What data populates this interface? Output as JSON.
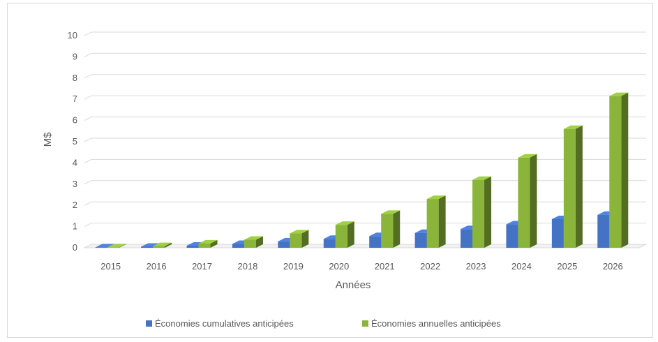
{
  "chart_data": {
    "type": "bar",
    "title": "",
    "xlabel": "Années",
    "ylabel": "M$",
    "ylim": [
      0,
      10
    ],
    "yticks": [
      "0",
      "1",
      "2",
      "3",
      "4",
      "5",
      "6",
      "7",
      "8",
      "9",
      "10"
    ],
    "categories": [
      "2015",
      "2016",
      "2017",
      "2018",
      "2019",
      "2020",
      "2021",
      "2022",
      "2023",
      "2024",
      "2025",
      "2026"
    ],
    "series": [
      {
        "name": "Économies cumulatives anticipées",
        "color": "#4472c4",
        "values": [
          0.02,
          0.05,
          0.1,
          0.18,
          0.3,
          0.42,
          0.55,
          0.7,
          0.88,
          1.1,
          1.35,
          1.55
        ]
      },
      {
        "name": "Économies annuelles anticipées",
        "color": "#8bb53a",
        "values": [
          0.02,
          0.08,
          0.2,
          0.38,
          0.68,
          1.08,
          1.6,
          2.3,
          3.2,
          4.25,
          5.6,
          7.15
        ]
      }
    ],
    "grid": true,
    "legend_position": "bottom",
    "style": "3d-column"
  }
}
